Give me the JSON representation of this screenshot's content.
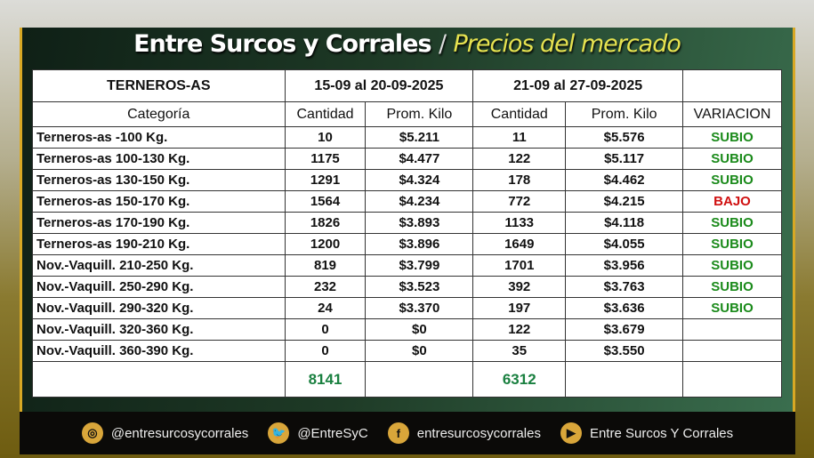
{
  "header": {
    "brand": "Entre Surcos y Corrales",
    "separator": "/",
    "subtitle": "Precios del mercado"
  },
  "table": {
    "group_header": "TERNEROS-AS",
    "period1": "15-09 al 20-09-2025",
    "period2": "21-09 al 27-09-2025",
    "columns": [
      "Categoría",
      "Cantidad",
      "Prom. Kilo",
      "Cantidad",
      "Prom. Kilo",
      "VARIACION"
    ],
    "rows": [
      [
        "Terneros-as -100 Kg.",
        "10",
        "$5.211",
        "11",
        "$5.576",
        "SUBIO"
      ],
      [
        "Terneros-as 100-130 Kg.",
        "1175",
        "$4.477",
        "122",
        "$5.117",
        "SUBIO"
      ],
      [
        "Terneros-as 130-150 Kg.",
        "1291",
        "$4.324",
        "178",
        "$4.462",
        "SUBIO"
      ],
      [
        "Terneros-as 150-170 Kg.",
        "1564",
        "$4.234",
        "772",
        "$4.215",
        "BAJO"
      ],
      [
        "Terneros-as 170-190 Kg.",
        "1826",
        "$3.893",
        "1133",
        "$4.118",
        "SUBIO"
      ],
      [
        "Terneros-as 190-210 Kg.",
        "1200",
        "$3.896",
        "1649",
        "$4.055",
        "SUBIO"
      ],
      [
        "Nov.-Vaquill. 210-250 Kg.",
        "819",
        "$3.799",
        "1701",
        "$3.956",
        "SUBIO"
      ],
      [
        "Nov.-Vaquill. 250-290 Kg.",
        "232",
        "$3.523",
        "392",
        "$3.763",
        "SUBIO"
      ],
      [
        "Nov.-Vaquill. 290-320 Kg.",
        "24",
        "$3.370",
        "197",
        "$3.636",
        "SUBIO"
      ],
      [
        "Nov.-Vaquill. 320-360 Kg.",
        "0",
        "$0",
        "122",
        "$3.679",
        ""
      ],
      [
        "Nov.-Vaquill. 360-390 Kg.",
        "0",
        "$0",
        "35",
        "$3.550",
        ""
      ]
    ],
    "total1": "8141",
    "total2": "6312"
  },
  "colors": {
    "up": "#1a8a1a",
    "down": "#d01010",
    "total": "#1a8040",
    "accent": "#d8a824"
  },
  "footer": [
    {
      "icon": "instagram-icon",
      "glyph": "◎",
      "label": "@entresurcosycorrales"
    },
    {
      "icon": "twitter-icon",
      "glyph": "🐦",
      "label": "@EntreSyC"
    },
    {
      "icon": "facebook-icon",
      "glyph": "f",
      "label": "entresurcosycorrales"
    },
    {
      "icon": "youtube-icon",
      "glyph": "▶",
      "label": "Entre Surcos Y Corrales"
    }
  ]
}
